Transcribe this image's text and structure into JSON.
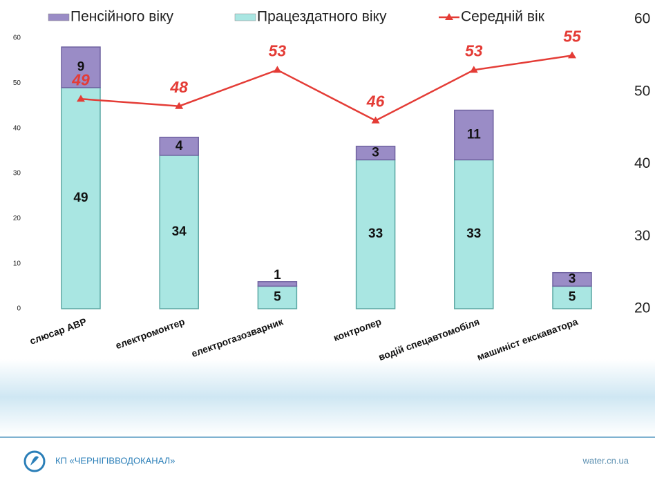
{
  "chart_data": {
    "type": "bar-line",
    "categories": [
      "слюсар АВР",
      "електромонтер",
      "електрогазозварник",
      "контролер",
      "водій спецавтомобіля",
      "машиніст екскаватора"
    ],
    "series": [
      {
        "name": "Працездатного віку",
        "color": "#a9e6e2",
        "values": [
          49,
          34,
          5,
          33,
          33,
          5
        ]
      },
      {
        "name": "Пенсійного віку",
        "color": "#9a8cc6",
        "values": [
          9,
          4,
          1,
          3,
          11,
          3
        ]
      },
      {
        "name": "Середній вік",
        "color": "#e43c36",
        "axis": "y2",
        "values": [
          49,
          48,
          53,
          46,
          53,
          55
        ]
      }
    ],
    "ylim": [
      0,
      60
    ],
    "yticks": [
      0,
      10,
      20,
      30,
      40,
      50,
      60
    ],
    "y2lim": [
      20,
      60
    ],
    "y2ticks": [
      20,
      30,
      40,
      50,
      60
    ]
  },
  "footer": {
    "organization": "КП «ЧЕРНІГІВВОДОКАНАЛ»",
    "website": "water.cn.ua"
  }
}
